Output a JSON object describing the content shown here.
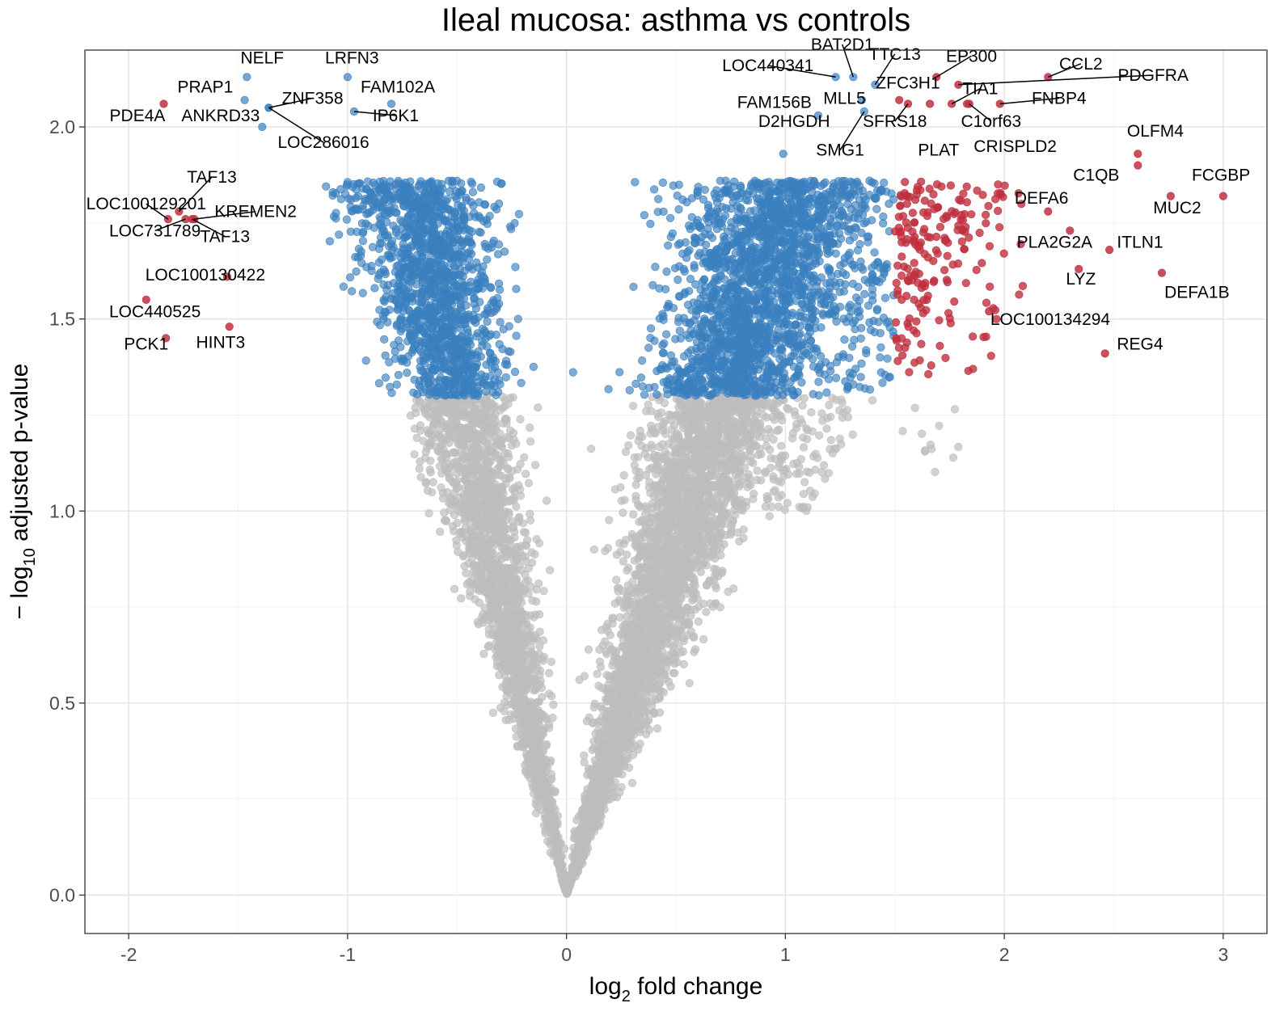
{
  "chart_data": {
    "type": "scatter",
    "title": "Ileal mucosa: asthma vs controls",
    "xlabel": "log2 fold change",
    "xlabel_parts": {
      "pre": "log",
      "sub": "2",
      "post": " fold change"
    },
    "ylabel": "− log10 adjusted p-value",
    "ylabel_parts": {
      "pre": "− log",
      "sub": "10",
      "post": " adjusted p-value"
    },
    "xlim": [
      -2.2,
      3.2
    ],
    "ylim": [
      -0.1,
      2.2
    ],
    "x_ticks": [
      -2,
      -1,
      0,
      1,
      2,
      3
    ],
    "x_tick_labels": [
      "-2",
      "-1",
      "0",
      "1",
      "2",
      "3"
    ],
    "y_ticks": [
      0.0,
      0.5,
      1.0,
      1.5,
      2.0
    ],
    "y_tick_labels": [
      "0.0",
      "0.5",
      "1.0",
      "1.5",
      "2.0"
    ],
    "grid": true,
    "significance_threshold_y": 1.3,
    "fold_change_threshold": 1.5,
    "colors": {
      "not_significant": "#bdbdbd",
      "significant": "#3a7fbf",
      "significant_large_fc": "#c0303f"
    },
    "background_points": {
      "count": 9000,
      "description_of_distribution": "V-shaped cloud; spread of x grows with y",
      "max_y_gray": 1.29,
      "min_y_colored": 1.31
    },
    "labeled_points": [
      {
        "gene": "NELF",
        "x": -1.46,
        "y": 2.13
      },
      {
        "gene": "PRAP1",
        "x": -1.47,
        "y": 2.07
      },
      {
        "gene": "ZNF358",
        "x": -1.36,
        "y": 2.05
      },
      {
        "gene": "LRFN3",
        "x": -1.0,
        "y": 2.13
      },
      {
        "gene": "FAM102A",
        "x": -0.8,
        "y": 2.06
      },
      {
        "gene": "IP6K1",
        "x": -0.97,
        "y": 2.04
      },
      {
        "gene": "ANKRD33",
        "x": -1.39,
        "y": 2.0
      },
      {
        "gene": "LOC286016",
        "x": -1.36,
        "y": 2.05
      },
      {
        "gene": "PDE4A",
        "x": -1.84,
        "y": 2.06
      },
      {
        "gene": "TAF13",
        "x": -1.77,
        "y": 1.78
      },
      {
        "gene": "LOC100129201",
        "x": -1.82,
        "y": 1.76
      },
      {
        "gene": "KREMEN2",
        "x": -1.7,
        "y": 1.76
      },
      {
        "gene": "LOC731789",
        "x": -1.74,
        "y": 1.76
      },
      {
        "gene": "TAF13",
        "x": -1.71,
        "y": 1.76
      },
      {
        "gene": "LOC100130422",
        "x": -1.55,
        "y": 1.61
      },
      {
        "gene": "LOC440525",
        "x": -1.92,
        "y": 1.55
      },
      {
        "gene": "PCK1",
        "x": -1.83,
        "y": 1.45
      },
      {
        "gene": "HINT3",
        "x": -1.54,
        "y": 1.48
      },
      {
        "gene": "LOC440341",
        "x": 1.23,
        "y": 2.13
      },
      {
        "gene": "BAT2D1",
        "x": 1.31,
        "y": 2.13
      },
      {
        "gene": "TTC13",
        "x": 1.41,
        "y": 2.11
      },
      {
        "gene": "EP300",
        "x": 1.69,
        "y": 2.13
      },
      {
        "gene": "CCL2",
        "x": 2.2,
        "y": 2.13
      },
      {
        "gene": "PDGFRA",
        "x": 1.79,
        "y": 2.11
      },
      {
        "gene": "FAM156B",
        "x": 1.15,
        "y": 2.03
      },
      {
        "gene": "MLL5",
        "x": 1.35,
        "y": 2.07
      },
      {
        "gene": "ZFC3H1",
        "x": 1.52,
        "y": 2.07
      },
      {
        "gene": "TIA1",
        "x": 1.76,
        "y": 2.06
      },
      {
        "gene": "FNBP4",
        "x": 1.98,
        "y": 2.06
      },
      {
        "gene": "D2HGDH",
        "x": 0.99,
        "y": 1.93
      },
      {
        "gene": "SFRS18",
        "x": 1.56,
        "y": 2.06
      },
      {
        "gene": "SMG1",
        "x": 1.36,
        "y": 2.04
      },
      {
        "gene": "PLAT",
        "x": 1.66,
        "y": 2.06
      },
      {
        "gene": "C1orf63",
        "x": 1.84,
        "y": 2.06
      },
      {
        "gene": "CRISPLD2",
        "x": 1.83,
        "y": 2.06
      },
      {
        "gene": "OLFM4",
        "x": 2.61,
        "y": 1.93
      },
      {
        "gene": "C1QB",
        "x": 2.61,
        "y": 1.9
      },
      {
        "gene": "FCGBP",
        "x": 3.0,
        "y": 1.82
      },
      {
        "gene": "MUC2",
        "x": 2.76,
        "y": 1.82
      },
      {
        "gene": "DEFA6",
        "x": 2.2,
        "y": 1.78
      },
      {
        "gene": "PLA2G2A",
        "x": 2.3,
        "y": 1.73
      },
      {
        "gene": "ITLN1",
        "x": 2.48,
        "y": 1.68
      },
      {
        "gene": "LYZ",
        "x": 2.34,
        "y": 1.63
      },
      {
        "gene": "DEFA1B",
        "x": 2.72,
        "y": 1.62
      },
      {
        "gene": "LOC100134294",
        "x": 1.93,
        "y": 1.52
      },
      {
        "gene": "REG4",
        "x": 2.46,
        "y": 1.41
      }
    ]
  }
}
